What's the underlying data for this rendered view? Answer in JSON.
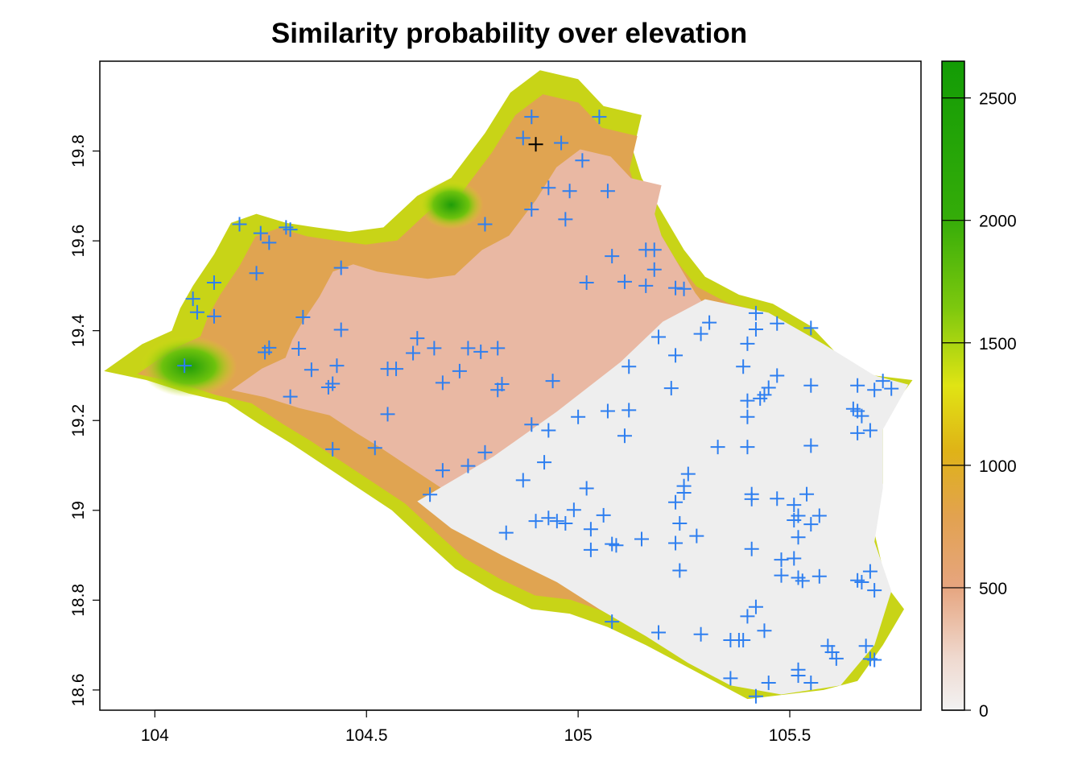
{
  "title": "Similarity probability over elevation",
  "colors": {
    "marker": "#2e7ff0",
    "selected_marker": "#000000",
    "elevation_ramp": [
      "#f2f2f2",
      "#efd3c8",
      "#e6a57f",
      "#e0a14a",
      "#dfb317",
      "#cde018",
      "#7dc80e",
      "#1f9d09",
      "#139c05"
    ]
  },
  "chart_data": {
    "type": "scatter",
    "title": "Similarity probability over elevation",
    "xlabel": "",
    "ylabel": "",
    "xlim": [
      103.87,
      105.81
    ],
    "ylim": [
      18.555,
      20.0
    ],
    "x_ticks": [
      "104",
      "104.5",
      "105",
      "105.5"
    ],
    "y_ticks": [
      "18.6",
      "18.8",
      "19",
      "19.2",
      "19.4",
      "19.6",
      "19.8"
    ],
    "legend": {
      "title": "",
      "placement": "right",
      "range": [
        0,
        2650
      ],
      "ticks": [
        "0",
        "500",
        "1000",
        "1500",
        "2000",
        "2500"
      ]
    },
    "selected_point": {
      "x": 104.9,
      "y": 19.815
    },
    "points": [
      [
        104.89,
        19.876
      ],
      [
        105.05,
        19.876
      ],
      [
        104.87,
        19.829
      ],
      [
        104.96,
        19.818
      ],
      [
        105.01,
        19.779
      ],
      [
        104.93,
        19.718
      ],
      [
        104.98,
        19.711
      ],
      [
        105.07,
        19.711
      ],
      [
        104.89,
        19.67
      ],
      [
        104.97,
        19.648
      ],
      [
        104.78,
        19.637
      ],
      [
        104.2,
        19.637
      ],
      [
        104.25,
        19.617
      ],
      [
        104.31,
        19.63
      ],
      [
        104.32,
        19.625
      ],
      [
        104.27,
        19.596
      ],
      [
        105.08,
        19.566
      ],
      [
        105.16,
        19.58
      ],
      [
        105.18,
        19.58
      ],
      [
        104.24,
        19.528
      ],
      [
        104.44,
        19.54
      ],
      [
        105.18,
        19.536
      ],
      [
        105.02,
        19.507
      ],
      [
        105.11,
        19.509
      ],
      [
        105.16,
        19.5
      ],
      [
        105.23,
        19.495
      ],
      [
        105.25,
        19.493
      ],
      [
        104.14,
        19.507
      ],
      [
        104.09,
        19.471
      ],
      [
        104.1,
        19.441
      ],
      [
        104.14,
        19.432
      ],
      [
        104.35,
        19.43
      ],
      [
        104.44,
        19.402
      ],
      [
        105.31,
        19.418
      ],
      [
        105.42,
        19.439
      ],
      [
        105.47,
        19.416
      ],
      [
        105.55,
        19.406
      ],
      [
        105.29,
        19.393
      ],
      [
        105.42,
        19.403
      ],
      [
        105.19,
        19.386
      ],
      [
        105.4,
        19.371
      ],
      [
        104.62,
        19.383
      ],
      [
        104.27,
        19.362
      ],
      [
        104.26,
        19.352
      ],
      [
        104.34,
        19.36
      ],
      [
        104.66,
        19.361
      ],
      [
        104.74,
        19.361
      ],
      [
        104.77,
        19.353
      ],
      [
        104.81,
        19.361
      ],
      [
        104.61,
        19.35
      ],
      [
        105.23,
        19.345
      ],
      [
        104.07,
        19.322
      ],
      [
        104.43,
        19.322
      ],
      [
        104.37,
        19.313
      ],
      [
        104.55,
        19.315
      ],
      [
        104.57,
        19.315
      ],
      [
        104.72,
        19.31
      ],
      [
        105.12,
        19.32
      ],
      [
        105.39,
        19.32
      ],
      [
        105.47,
        19.3
      ],
      [
        104.42,
        19.282
      ],
      [
        104.41,
        19.274
      ],
      [
        104.68,
        19.284
      ],
      [
        104.82,
        19.281
      ],
      [
        104.81,
        19.268
      ],
      [
        104.94,
        19.288
      ],
      [
        105.45,
        19.273
      ],
      [
        105.44,
        19.257
      ],
      [
        105.43,
        19.249
      ],
      [
        105.55,
        19.278
      ],
      [
        105.66,
        19.278
      ],
      [
        105.72,
        19.288
      ],
      [
        105.7,
        19.268
      ],
      [
        105.74,
        19.271
      ],
      [
        105.22,
        19.272
      ],
      [
        104.32,
        19.253
      ],
      [
        105.4,
        19.244
      ],
      [
        105.4,
        19.208
      ],
      [
        105.07,
        19.221
      ],
      [
        105.12,
        19.223
      ],
      [
        104.55,
        19.214
      ],
      [
        105.0,
        19.208
      ],
      [
        105.65,
        19.226
      ],
      [
        105.66,
        19.221
      ],
      [
        105.67,
        19.21
      ],
      [
        104.89,
        19.191
      ],
      [
        104.93,
        19.178
      ],
      [
        105.11,
        19.166
      ],
      [
        105.66,
        19.172
      ],
      [
        105.69,
        19.178
      ],
      [
        104.42,
        19.136
      ],
      [
        104.52,
        19.139
      ],
      [
        104.78,
        19.129
      ],
      [
        105.33,
        19.141
      ],
      [
        105.4,
        19.141
      ],
      [
        105.55,
        19.144
      ],
      [
        104.74,
        19.099
      ],
      [
        104.68,
        19.089
      ],
      [
        104.92,
        19.107
      ],
      [
        105.26,
        19.081
      ],
      [
        104.87,
        19.067
      ],
      [
        105.25,
        19.054
      ],
      [
        105.02,
        19.049
      ],
      [
        105.25,
        19.039
      ],
      [
        104.65,
        19.035
      ],
      [
        105.41,
        19.036
      ],
      [
        105.41,
        19.025
      ],
      [
        105.47,
        19.026
      ],
      [
        105.51,
        19.012
      ],
      [
        105.54,
        19.036
      ],
      [
        105.52,
        18.988
      ],
      [
        105.51,
        18.978
      ],
      [
        105.55,
        18.969
      ],
      [
        105.57,
        18.988
      ],
      [
        105.23,
        19.018
      ],
      [
        104.99,
        19.001
      ],
      [
        105.06,
        18.989
      ],
      [
        105.24,
        18.971
      ],
      [
        104.9,
        18.976
      ],
      [
        104.93,
        18.983
      ],
      [
        104.95,
        18.976
      ],
      [
        104.97,
        18.971
      ],
      [
        105.03,
        18.958
      ],
      [
        105.52,
        18.94
      ],
      [
        104.83,
        18.95
      ],
      [
        105.15,
        18.936
      ],
      [
        105.28,
        18.943
      ],
      [
        105.08,
        18.925
      ],
      [
        105.09,
        18.922
      ],
      [
        105.23,
        18.927
      ],
      [
        105.41,
        18.914
      ],
      [
        105.48,
        18.89
      ],
      [
        105.51,
        18.893
      ],
      [
        105.03,
        18.912
      ],
      [
        105.24,
        18.866
      ],
      [
        105.48,
        18.855
      ],
      [
        105.52,
        18.85
      ],
      [
        105.53,
        18.843
      ],
      [
        105.57,
        18.853
      ],
      [
        105.66,
        18.844
      ],
      [
        105.67,
        18.84
      ],
      [
        105.69,
        18.864
      ],
      [
        105.7,
        18.822
      ],
      [
        105.42,
        18.785
      ],
      [
        105.4,
        18.764
      ],
      [
        105.08,
        18.752
      ],
      [
        105.19,
        18.728
      ],
      [
        105.29,
        18.724
      ],
      [
        105.36,
        18.711
      ],
      [
        105.38,
        18.711
      ],
      [
        105.39,
        18.711
      ],
      [
        105.44,
        18.732
      ],
      [
        105.59,
        18.698
      ],
      [
        105.6,
        18.684
      ],
      [
        105.61,
        18.67
      ],
      [
        105.68,
        18.698
      ],
      [
        105.69,
        18.669
      ],
      [
        105.7,
        18.667
      ],
      [
        105.52,
        18.645
      ],
      [
        105.52,
        18.632
      ],
      [
        105.55,
        18.616
      ],
      [
        105.36,
        18.626
      ],
      [
        105.45,
        18.616
      ],
      [
        105.42,
        18.586
      ]
    ]
  }
}
